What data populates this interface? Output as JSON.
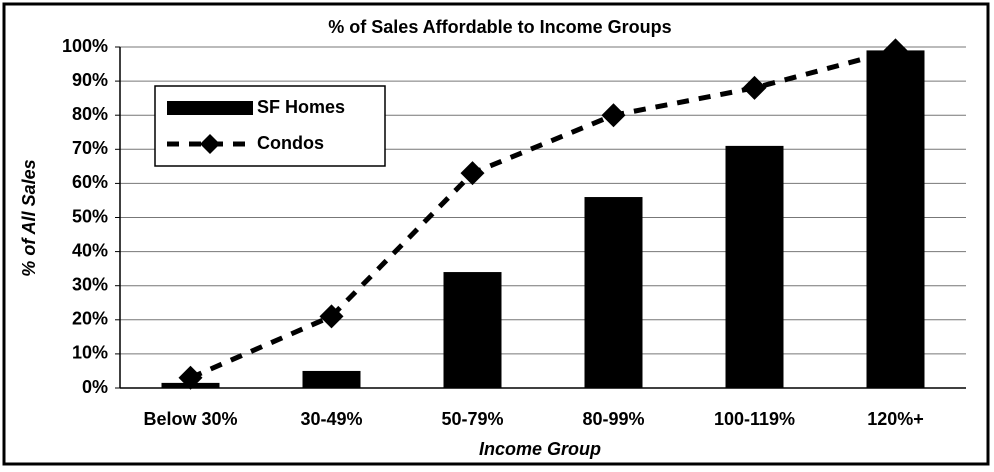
{
  "chart_data": {
    "type": "bar",
    "title": "% of Sales Affordable to Income Groups",
    "xlabel": "Income Group",
    "ylabel": "% of All Sales",
    "categories": [
      "Below 30%",
      "30-49%",
      "50-79%",
      "80-99%",
      "100-119%",
      "120%+"
    ],
    "series": [
      {
        "name": "SF Homes",
        "type": "bar",
        "color": "#000000",
        "values": [
          1.5,
          5,
          34,
          56,
          71,
          99
        ]
      },
      {
        "name": "Condos",
        "type": "line",
        "color": "#000000",
        "values": [
          3,
          21,
          63,
          80,
          88,
          99
        ]
      }
    ],
    "ylim": [
      0,
      100
    ],
    "yticks": [
      {
        "value": 0,
        "label": "0%"
      },
      {
        "value": 10,
        "label": "10%"
      },
      {
        "value": 20,
        "label": "20%"
      },
      {
        "value": 30,
        "label": "30%"
      },
      {
        "value": 40,
        "label": "40%"
      },
      {
        "value": 50,
        "label": "50%"
      },
      {
        "value": 60,
        "label": "60%"
      },
      {
        "value": 70,
        "label": "70%"
      },
      {
        "value": 80,
        "label": "80%"
      },
      {
        "value": 90,
        "label": "90%"
      },
      {
        "value": 100,
        "label": "100%"
      }
    ],
    "grid": true,
    "legend": "upper left"
  }
}
